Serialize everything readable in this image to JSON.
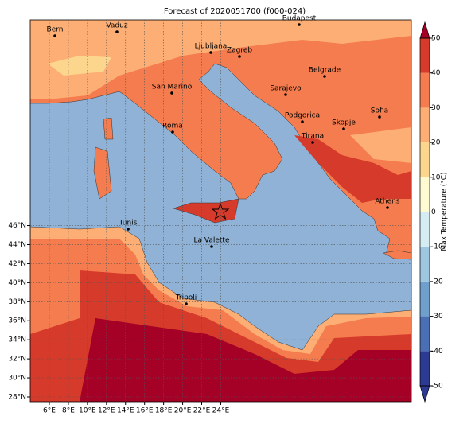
{
  "title": "Forecast of 2020051700 (f000-024)",
  "map": {
    "lon_ticks": [
      "6°E",
      "8°E",
      "10°E",
      "12°E",
      "14°E",
      "16°E",
      "18°E",
      "20°E",
      "22°E",
      "24°E"
    ],
    "lat_ticks": [
      "28°N",
      "30°N",
      "32°N",
      "34°N",
      "36°N",
      "38°N",
      "40°N",
      "42°N",
      "44°N",
      "46°N"
    ],
    "cities": [
      "Bern",
      "Vaduz",
      "Budapest",
      "Ljubljana",
      "Zagreb",
      "Belgrade",
      "San Marino",
      "Sarajevo",
      "Sofia",
      "Podgorica",
      "Skopje",
      "Roma",
      "Tirana",
      "Athens",
      "Tunis",
      "La Valette",
      "Tripoli"
    ]
  },
  "colorbar": {
    "label": "Max Temperature (°C)",
    "ticks": [
      -50,
      -40,
      -30,
      -20,
      -10,
      0,
      10,
      20,
      30,
      40,
      50
    ],
    "colors": [
      "#2c3a92",
      "#4a6fb4",
      "#709fcc",
      "#9ec6e0",
      "#d6ecf3",
      "#fefbd2",
      "#fdd68e",
      "#fcae74",
      "#f47c4e",
      "#d63a2a",
      "#a50026"
    ]
  }
}
